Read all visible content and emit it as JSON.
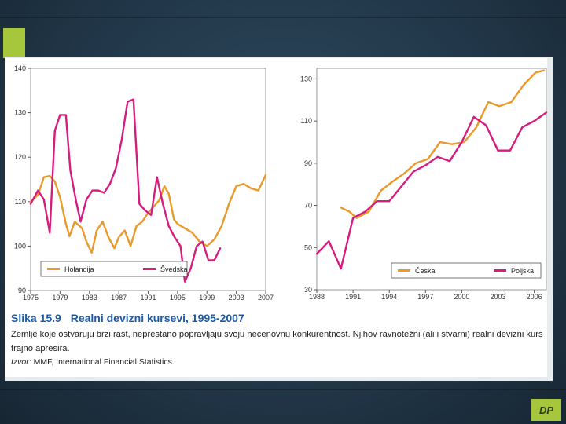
{
  "figure": {
    "title_number": "Slika 15.9",
    "title_text": "Realni devizni kursevi, 1995-2007",
    "description": "Zemlje koje ostvaruju brzi rast, neprestano popravljaju svoju necenovnu konkurentnost. Njihov ravnotežni (ali i stvarni) realni devizni kurs trajno apresira.",
    "source_label": "Izvor:",
    "source_text": "MMF, International Financial Statistics."
  },
  "badge": "DP",
  "colors": {
    "orange": "#e99a2a",
    "magenta": "#d61c7e",
    "accent": "#a6c63c",
    "title_blue": "#1a5aa8"
  },
  "chart_data": [
    {
      "type": "line",
      "title": "",
      "xlabel": "",
      "ylabel": "",
      "xlim": [
        1975,
        2007
      ],
      "ylim": [
        90,
        140
      ],
      "x_ticks": [
        1975,
        1979,
        1983,
        1987,
        1991,
        1995,
        1999,
        2003,
        2007
      ],
      "y_ticks": [
        90,
        100,
        110,
        120,
        130,
        140
      ],
      "legend_position": "bottom",
      "series": [
        {
          "name": "Holandija",
          "color": "#e99a2a",
          "points": [
            [
              1975,
              110
            ],
            [
              1976,
              111.5
            ],
            [
              1976.8,
              115.5
            ],
            [
              1977.6,
              115.8
            ],
            [
              1978.3,
              114.5
            ],
            [
              1979,
              111
            ],
            [
              1979.8,
              105
            ],
            [
              1980.3,
              102.2
            ],
            [
              1981,
              105.5
            ],
            [
              1982,
              104
            ],
            [
              1982.6,
              101
            ],
            [
              1983.3,
              98.5
            ],
            [
              1984,
              103.5
            ],
            [
              1984.8,
              105.5
            ],
            [
              1985.6,
              102
            ],
            [
              1986.4,
              99.5
            ],
            [
              1987,
              102
            ],
            [
              1987.8,
              103.5
            ],
            [
              1988.6,
              100
            ],
            [
              1989.4,
              104.5
            ],
            [
              1990.2,
              105.5
            ],
            [
              1991,
              107.5
            ],
            [
              1991.8,
              109
            ],
            [
              1992.5,
              110.3
            ],
            [
              1993.2,
              113.5
            ],
            [
              1993.8,
              111.8
            ],
            [
              1994.5,
              106
            ],
            [
              1995,
              105
            ],
            [
              1996,
              104
            ],
            [
              1997,
              103
            ],
            [
              1998,
              101
            ],
            [
              1999,
              100
            ],
            [
              2000,
              101.5
            ],
            [
              2001,
              104.5
            ],
            [
              2002,
              109.5
            ],
            [
              2003,
              113.5
            ],
            [
              2004,
              114
            ],
            [
              2005,
              113
            ],
            [
              2006,
              112.5
            ],
            [
              2007,
              116
            ]
          ]
        },
        {
          "name": "Švedska",
          "color": "#d61c7e",
          "points": [
            [
              1975,
              109.5
            ],
            [
              1976,
              112.5
            ],
            [
              1976.8,
              110.5
            ],
            [
              1977.6,
              103
            ],
            [
              1978.3,
              126
            ],
            [
              1979,
              129.5
            ],
            [
              1979.8,
              129.5
            ],
            [
              1980.4,
              117
            ],
            [
              1981.2,
              110
            ],
            [
              1981.8,
              105.5
            ],
            [
              1982.6,
              110.5
            ],
            [
              1983.4,
              112.5
            ],
            [
              1984.2,
              112.5
            ],
            [
              1985,
              112
            ],
            [
              1985.8,
              114
            ],
            [
              1986.6,
              117.5
            ],
            [
              1987.4,
              124
            ],
            [
              1988.2,
              132.5
            ],
            [
              1989,
              133
            ],
            [
              1989.8,
              109.5
            ],
            [
              1990.6,
              108
            ],
            [
              1991.4,
              107
            ],
            [
              1992.2,
              115.5
            ],
            [
              1993,
              109.5
            ],
            [
              1993.8,
              104.5
            ],
            [
              1994.6,
              102
            ],
            [
              1995.4,
              100
            ],
            [
              1996,
              92
            ],
            [
              1996.8,
              95
            ],
            [
              1997.6,
              100
            ],
            [
              1998.4,
              101
            ],
            [
              1999.2,
              96.8
            ],
            [
              2000,
              96.8
            ],
            [
              2000.8,
              99.5
            ]
          ]
        }
      ]
    },
    {
      "type": "line",
      "title": "",
      "xlabel": "",
      "ylabel": "",
      "xlim": [
        1988,
        2007
      ],
      "ylim": [
        30,
        135
      ],
      "x_ticks": [
        1988,
        1991,
        1994,
        1997,
        2000,
        2003,
        2006
      ],
      "y_ticks": [
        30,
        50,
        70,
        90,
        110,
        130
      ],
      "legend_position": "bottom",
      "series": [
        {
          "name": "Česka",
          "color": "#e99a2a",
          "points": [
            [
              1990,
              69
            ],
            [
              1990.7,
              67
            ],
            [
              1991.3,
              64
            ],
            [
              1992.3,
              67
            ],
            [
              1993.3,
              77
            ],
            [
              1994.2,
              81
            ],
            [
              1995.2,
              85
            ],
            [
              1996.2,
              90
            ],
            [
              1997.2,
              92
            ],
            [
              1998.2,
              100
            ],
            [
              1999.2,
              99
            ],
            [
              2000.2,
              100
            ],
            [
              2001.2,
              107
            ],
            [
              2002.2,
              119
            ],
            [
              2003.1,
              117
            ],
            [
              2004.1,
              119
            ],
            [
              2005.1,
              127
            ],
            [
              2006.1,
              133
            ],
            [
              2006.8,
              134
            ]
          ]
        },
        {
          "name": "Poljska",
          "color": "#d61c7e",
          "points": [
            [
              1988,
              47
            ],
            [
              1989,
              53
            ],
            [
              1990,
              40
            ],
            [
              1991,
              64
            ],
            [
              1992,
              67
            ],
            [
              1993,
              72
            ],
            [
              1994,
              72
            ],
            [
              1995,
              79
            ],
            [
              1996,
              86
            ],
            [
              1997,
              89
            ],
            [
              1998,
              93
            ],
            [
              1999,
              91
            ],
            [
              2000,
              100
            ],
            [
              2001,
              112
            ],
            [
              2002,
              108
            ],
            [
              2003,
              96
            ],
            [
              2004,
              96
            ],
            [
              2005,
              107
            ],
            [
              2006,
              110
            ],
            [
              2007,
              114
            ]
          ]
        }
      ]
    }
  ]
}
